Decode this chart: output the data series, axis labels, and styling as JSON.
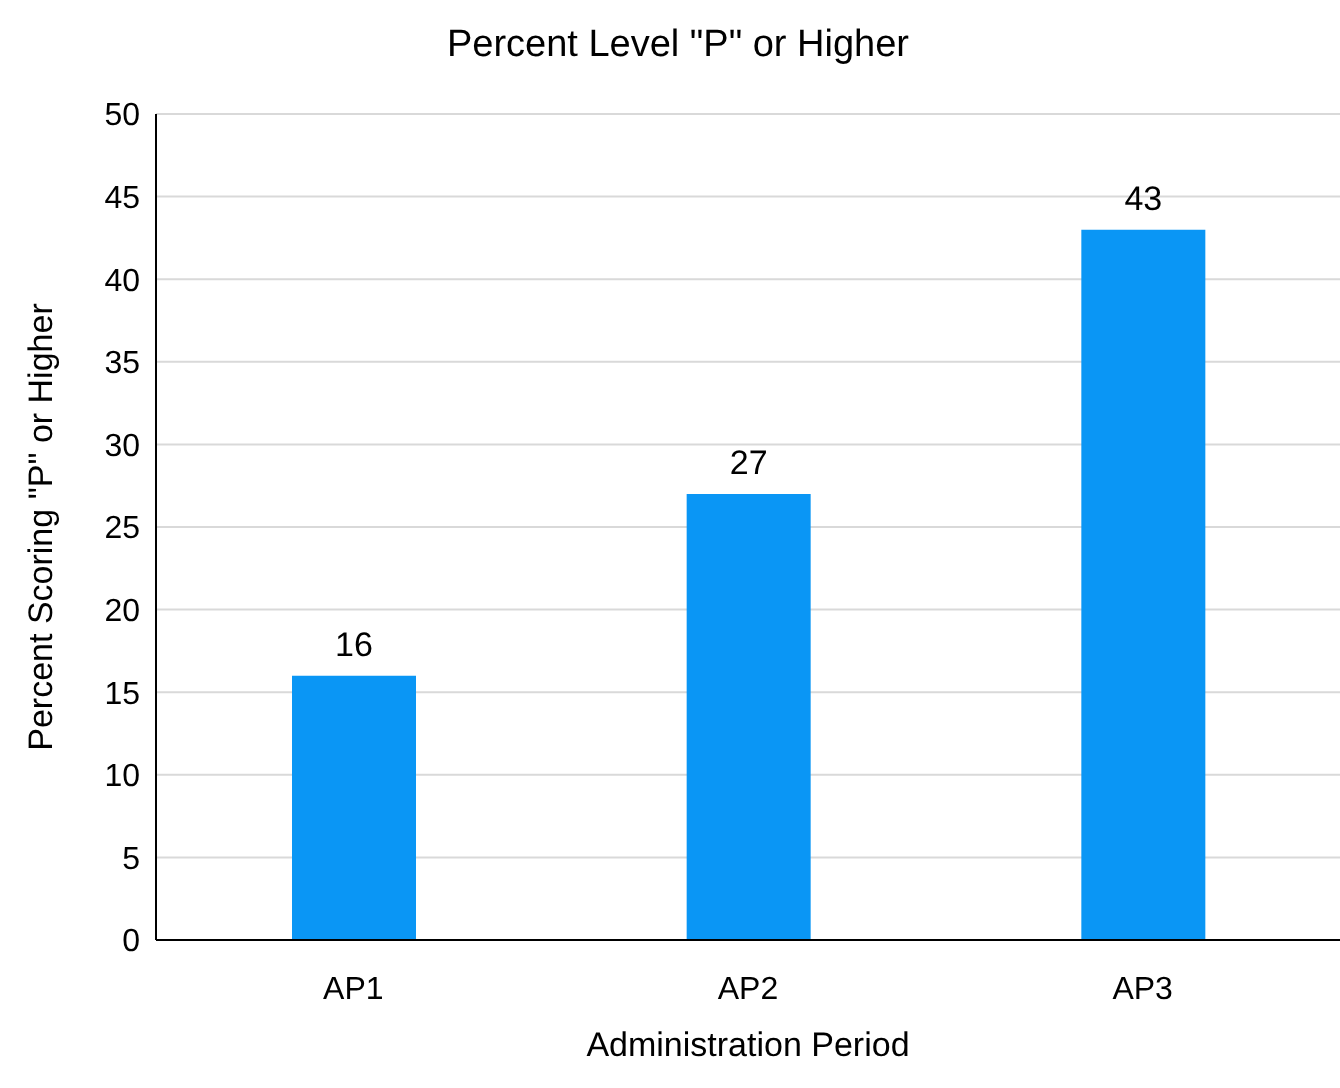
{
  "chart_data": {
    "type": "bar",
    "title": "Percent Level \"P\" or Higher",
    "xlabel": "Administration Period",
    "ylabel": "Percent Scoring \"P\" or Higher",
    "categories": [
      "AP1",
      "AP2",
      "AP3"
    ],
    "values": [
      16,
      27,
      43
    ],
    "color": "#0a96f5",
    "ylim": [
      0,
      50
    ],
    "yticks": [
      0,
      5,
      10,
      15,
      20,
      25,
      30,
      35,
      40,
      45,
      50
    ],
    "grid": "y",
    "data_labels": true
  }
}
